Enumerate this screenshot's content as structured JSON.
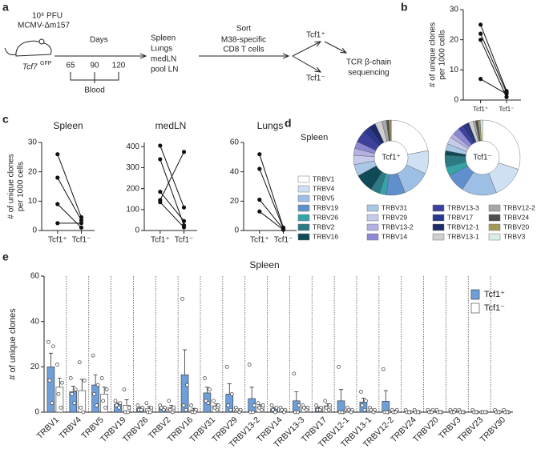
{
  "panel_labels": [
    "a",
    "b",
    "c",
    "d",
    "e"
  ],
  "diagram": {
    "infection": [
      "10⁶ PFU",
      "MCMV-Δm157"
    ],
    "mouse": "Tcf7",
    "mouse_sup": "GFP",
    "days_label": "Days",
    "days": [
      "65",
      "90",
      "120"
    ],
    "blood": "Blood",
    "organs": [
      "Spleen",
      "Lungs",
      "medLN",
      "pool LN"
    ],
    "sort": "Sort",
    "sort_target": [
      "M38-specific",
      "CD8 T cells"
    ],
    "populations": [
      "Tcf1⁺",
      "Tcf1⁻"
    ],
    "readout": [
      "TCR β-chain",
      "sequencing"
    ]
  },
  "chart_data": [
    {
      "type": "line",
      "y_label": [
        "# of unique clones",
        "per 1000 cells"
      ],
      "categories": [
        "Tcf1⁺",
        "Tcf1⁻"
      ],
      "ylim": [
        0,
        30
      ],
      "yticks": [
        0,
        10,
        20,
        30
      ],
      "series": [
        {
          "color": "#111",
          "values": [
            25,
            3
          ]
        },
        {
          "color": "#111",
          "values": [
            22,
            2.5
          ]
        },
        {
          "color": "#111",
          "values": [
            20,
            1
          ]
        },
        {
          "color": "#111",
          "values": [
            7,
            2
          ]
        }
      ]
    },
    {
      "type": "line",
      "title": "Spleen",
      "y_label": [
        "# of unique clones",
        "per 1000 cells"
      ],
      "categories": [
        "Tcf1⁺",
        "Tcf1⁻"
      ],
      "ylim": [
        0,
        30
      ],
      "yticks": [
        0,
        10,
        20,
        30
      ],
      "series": [
        {
          "color": "#111",
          "values": [
            26,
            4.5
          ]
        },
        {
          "color": "#111",
          "values": [
            18,
            3.5
          ]
        },
        {
          "color": "#111",
          "values": [
            9,
            1
          ]
        },
        {
          "color": "#111",
          "values": [
            2.5,
            2.5
          ]
        }
      ]
    },
    {
      "type": "line",
      "title": "medLN",
      "categories": [
        "Tcf1⁺",
        "Tcf1⁻"
      ],
      "ylim": [
        0,
        420
      ],
      "yticks": [
        0,
        100,
        200,
        300,
        400
      ],
      "series": [
        {
          "color": "#111",
          "values": [
            405,
            110
          ]
        },
        {
          "color": "#111",
          "values": [
            340,
            25
          ]
        },
        {
          "color": "#111",
          "values": [
            185,
            45
          ]
        },
        {
          "color": "#111",
          "values": [
            145,
            375
          ]
        },
        {
          "color": "#111",
          "values": [
            135,
            15
          ]
        }
      ]
    },
    {
      "type": "line",
      "title": "Lungs",
      "categories": [
        "Tcf1⁺",
        "Tcf1⁻"
      ],
      "ylim": [
        0,
        60
      ],
      "yticks": [
        0,
        20,
        40,
        60
      ],
      "series": [
        {
          "color": "#111",
          "values": [
            52,
            2
          ]
        },
        {
          "color": "#111",
          "values": [
            42,
            1.5
          ]
        },
        {
          "color": "#111",
          "values": [
            21,
            1
          ]
        },
        {
          "color": "#111",
          "values": [
            13,
            0.5
          ]
        }
      ]
    },
    {
      "type": "donut",
      "title": "Spleen",
      "categories": [
        "TRBV1",
        "TRBV4",
        "TRBV5",
        "TRBV19",
        "TRBV26",
        "TRBV2",
        "TRBV16",
        "TRBV31",
        "TRBV29",
        "TRBV13-2",
        "TRBV14",
        "TRBV13-3",
        "TRBV17",
        "TRBV12-1",
        "TRBV13-1",
        "TRBV12-2",
        "TRBV24",
        "TRBV20",
        "TRBV3"
      ],
      "colors": [
        "#ffffff",
        "#cfe0f3",
        "#9dbfe6",
        "#5f8fcc",
        "#35a3a8",
        "#2b7a84",
        "#0f4a57",
        "#a9c8e8",
        "#c5cbea",
        "#b4b0e2",
        "#8d88d3",
        "#3d419c",
        "#2b3690",
        "#1c2a66",
        "#cfcfcf",
        "#a6a6a6",
        "#4e4e4e",
        "#a19a5a",
        "#d9efe6"
      ],
      "series": [
        {
          "name": "Tcf1⁺",
          "values": [
            22,
            10,
            12,
            8,
            3,
            4,
            8,
            5,
            4,
            3,
            3,
            5,
            3,
            3,
            3,
            2,
            1,
            1,
            0
          ]
        },
        {
          "name": "Tcf1⁻",
          "values": [
            30,
            14,
            15,
            8,
            4,
            5,
            2,
            3,
            3,
            2,
            3,
            2,
            2,
            1,
            2,
            1,
            1,
            1,
            1
          ]
        }
      ]
    },
    {
      "type": "bar",
      "title": "Spleen",
      "y_label": "# of unique clones",
      "legend": "top-right",
      "ylim": [
        0,
        60
      ],
      "yticks": [
        0,
        20,
        40,
        60
      ],
      "categories": [
        "TRBV1",
        "TRBV4",
        "TRBV5",
        "TRBV19",
        "TRBV26",
        "TRBV2",
        "TRBV16",
        "TRBV31",
        "TRBV29",
        "TRBV13-2",
        "TRBV14",
        "TRBV13-3",
        "TRBV17",
        "TRBV12-1",
        "TRBV13-1",
        "TRBV12-2",
        "TRBV24",
        "TRBV20",
        "TRBV3",
        "TRBV23",
        "TRBV30"
      ],
      "series": [
        {
          "name": "Tcf1⁺",
          "color": "#6f9fd8",
          "values": [
            20,
            9,
            12,
            3.5,
            1.8,
            2,
            16.5,
            8.5,
            8,
            6,
            1.5,
            5,
            1.8,
            5,
            4.5,
            4.8,
            0.3,
            0.5,
            0.5,
            0.3,
            0.3
          ],
          "errors": [
            6,
            2.5,
            4.5,
            0.7,
            0.5,
            0.5,
            11,
            2.5,
            4.5,
            5,
            0.6,
            4,
            0.5,
            5,
            1.7,
            4.7,
            0.3,
            0.3,
            0.3,
            0.3,
            0.3
          ],
          "points": [
            [
              31,
              29,
              14,
              4
            ],
            [
              15,
              10,
              8,
              4
            ],
            [
              25,
              12,
              8,
              3
            ],
            [
              5,
              4,
              3,
              2
            ],
            [
              3,
              2,
              1,
              1
            ],
            [
              3,
              2,
              2,
              1
            ],
            [
              50,
              12,
              3,
              1
            ],
            [
              15,
              10,
              5,
              4
            ],
            [
              20,
              8,
              3,
              1
            ],
            [
              21,
              3,
              0,
              0
            ],
            [
              3,
              2,
              1,
              0
            ],
            [
              17,
              3,
              0,
              0
            ],
            [
              3,
              2,
              1,
              1
            ],
            [
              20,
              0,
              0,
              0
            ],
            [
              9,
              5,
              3,
              1
            ],
            [
              19,
              0,
              0,
              0
            ],
            [
              1,
              0,
              0,
              0
            ],
            [
              1,
              1,
              0,
              0
            ],
            [
              1,
              1,
              0,
              0
            ],
            [
              1,
              0,
              0,
              0
            ],
            [
              1,
              0,
              0,
              0
            ]
          ]
        },
        {
          "name": "Tcf1⁻",
          "color": "#ffffff",
          "values": [
            11,
            9.5,
            8,
            3,
            1.5,
            2,
            1,
            2.8,
            1,
            2.5,
            1,
            2,
            2.8,
            1,
            1,
            0.5,
            0.3,
            0.3,
            0.3,
            0,
            0.3
          ],
          "errors": [
            4,
            5,
            3,
            2.5,
            1,
            1,
            0.7,
            0.9,
            0.4,
            0.7,
            0.4,
            0.5,
            0.9,
            0.4,
            0.4,
            0.3,
            0.3,
            0.3,
            0.3,
            0,
            0.3
          ],
          "points": [
            [
              21,
              13,
              8,
              2
            ],
            [
              22,
              14,
              2,
              0
            ],
            [
              15,
              10,
              5,
              2
            ],
            [
              10,
              2,
              0,
              0
            ],
            [
              4,
              2,
              0,
              0
            ],
            [
              5,
              2,
              1,
              0
            ],
            [
              3,
              1,
              0,
              0
            ],
            [
              5,
              3,
              2,
              1
            ],
            [
              2,
              1,
              1,
              0
            ],
            [
              4,
              3,
              2,
              1
            ],
            [
              2,
              1,
              1,
              0
            ],
            [
              3,
              2,
              2,
              1
            ],
            [
              5,
              3,
              2,
              1
            ],
            [
              2,
              1,
              1,
              0
            ],
            [
              2,
              1,
              1,
              0
            ],
            [
              1,
              1,
              0,
              0
            ],
            [
              1,
              0,
              0,
              0
            ],
            [
              1,
              0,
              0,
              0
            ],
            [
              1,
              0,
              0,
              0
            ],
            [
              0,
              0,
              0,
              0
            ],
            [
              1,
              0,
              0,
              0
            ]
          ]
        }
      ]
    }
  ]
}
